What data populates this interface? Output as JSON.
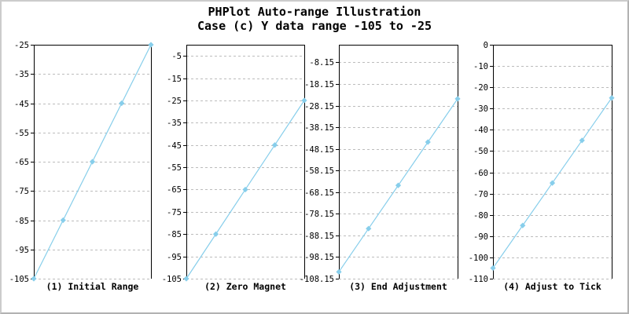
{
  "title": {
    "line1": "PHPlot Auto-range Illustration",
    "line2": "Case (c) Y data range -105 to -25"
  },
  "colors": {
    "line": "#87CEEB",
    "marker": "#87CEEB",
    "grid": "#BCBCBC",
    "axis": "#000000",
    "text": "#000000",
    "background": "#FFFFFF",
    "image_border": "#C6C6C6"
  },
  "chart_data": [
    {
      "type": "line",
      "title": "(1) Initial Range",
      "x": [
        0,
        1,
        2,
        3,
        4
      ],
      "y": [
        -105,
        -85,
        -65,
        -45,
        -25
      ],
      "xlim": [
        0,
        4
      ],
      "ylim": [
        -105,
        -25
      ],
      "ytick_values": [
        -25,
        -35,
        -45,
        -55,
        -65,
        -75,
        -85,
        -95,
        -105
      ],
      "ytick_labels": [
        "-25",
        "-35",
        "-45",
        "-55",
        "-65",
        "-75",
        "-85",
        "-95",
        "-105"
      ],
      "grid": true,
      "marker_shape": "diamond"
    },
    {
      "type": "line",
      "title": "(2) Zero Magnet",
      "x": [
        0,
        1,
        2,
        3,
        4
      ],
      "y": [
        -105,
        -85,
        -65,
        -45,
        -25
      ],
      "xlim": [
        0,
        4
      ],
      "ylim": [
        -105,
        0
      ],
      "ytick_values": [
        -5,
        -15,
        -25,
        -35,
        -45,
        -55,
        -65,
        -75,
        -85,
        -95,
        -105
      ],
      "ytick_labels": [
        "-5",
        "-15",
        "-25",
        "-35",
        "-45",
        "-55",
        "-65",
        "-75",
        "-85",
        "-95",
        "-105"
      ],
      "grid": true,
      "marker_shape": "diamond"
    },
    {
      "type": "line",
      "title": "(3) End Adjustment",
      "x": [
        0,
        1,
        2,
        3,
        4
      ],
      "y": [
        -105,
        -85,
        -65,
        -45,
        -25
      ],
      "xlim": [
        0,
        4
      ],
      "ylim": [
        -108.15,
        0
      ],
      "ytick_values": [
        -8.15,
        -18.15,
        -28.15,
        -38.15,
        -48.15,
        -58.15,
        -68.15,
        -78.15,
        -88.15,
        -98.15,
        -108.15
      ],
      "ytick_labels": [
        "-8.15",
        "-18.15",
        "-28.15",
        "-38.15",
        "-48.15",
        "-58.15",
        "-68.15",
        "-78.15",
        "-88.15",
        "-98.15",
        "-108.15"
      ],
      "grid": true,
      "marker_shape": "diamond"
    },
    {
      "type": "line",
      "title": "(4) Adjust to Tick",
      "x": [
        0,
        1,
        2,
        3,
        4
      ],
      "y": [
        -105,
        -85,
        -65,
        -45,
        -25
      ],
      "xlim": [
        0,
        4
      ],
      "ylim": [
        -110,
        0
      ],
      "ytick_values": [
        0,
        -10,
        -20,
        -30,
        -40,
        -50,
        -60,
        -70,
        -80,
        -90,
        -100,
        -110
      ],
      "ytick_labels": [
        "0",
        "-10",
        "-20",
        "-30",
        "-40",
        "-50",
        "-60",
        "-70",
        "-80",
        "-90",
        "-100",
        "-110"
      ],
      "grid": true,
      "marker_shape": "diamond"
    }
  ]
}
